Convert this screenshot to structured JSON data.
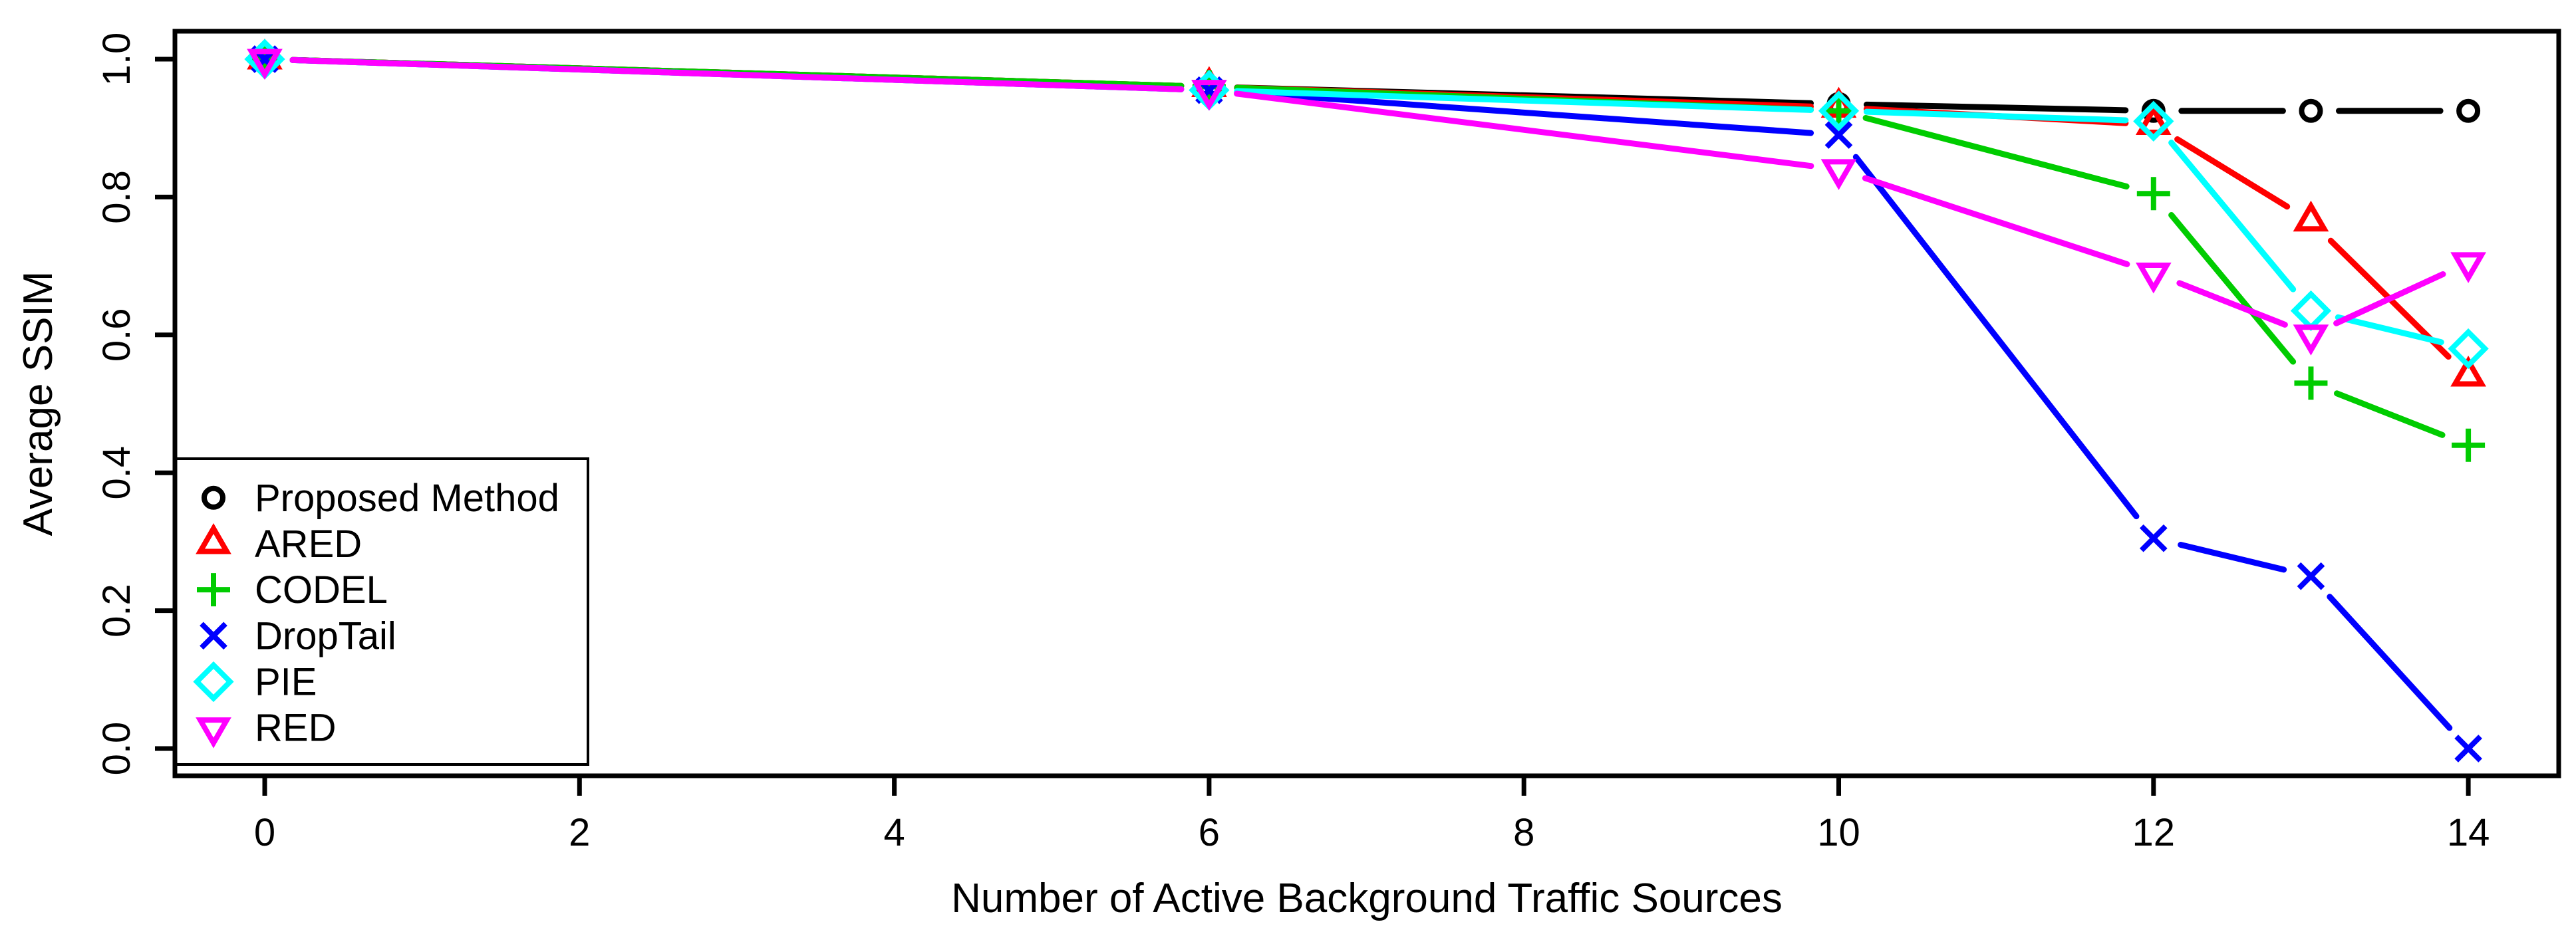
{
  "chart_data": {
    "type": "line",
    "title": "",
    "xlabel": "Number of Active Background Traffic Sources",
    "ylabel": "Average SSIM",
    "xlim": [
      0,
      14
    ],
    "ylim": [
      0.0,
      1.0
    ],
    "x_tick_labels": [
      "0",
      "2",
      "4",
      "6",
      "8",
      "10",
      "12",
      "14"
    ],
    "x_tick_values": [
      0,
      2,
      4,
      6,
      8,
      10,
      12,
      14
    ],
    "y_tick_labels": [
      "0.0",
      "0.2",
      "0.4",
      "0.6",
      "0.8",
      "1.0"
    ],
    "y_tick_values": [
      0.0,
      0.2,
      0.4,
      0.6,
      0.8,
      1.0
    ],
    "grid": false,
    "legend_position": "bottom-left",
    "line_style": "points-and-lines",
    "x": [
      0,
      6,
      10,
      12,
      13,
      14
    ],
    "series": [
      {
        "name": "Proposed Method",
        "color": "#000000",
        "marker": "circle",
        "values": [
          1.0,
          0.96,
          0.935,
          0.925,
          0.925,
          0.925
        ]
      },
      {
        "name": "ARED",
        "color": "#FF0000",
        "marker": "triangle-up",
        "values": [
          1.0,
          0.96,
          0.93,
          0.905,
          0.765,
          0.54
        ]
      },
      {
        "name": "CODEL",
        "color": "#00CC00",
        "marker": "plus",
        "values": [
          1.0,
          0.96,
          0.925,
          0.805,
          0.53,
          0.44
        ]
      },
      {
        "name": "DropTail",
        "color": "#0000FF",
        "marker": "x",
        "values": [
          1.0,
          0.955,
          0.89,
          0.305,
          0.25,
          0.0
        ]
      },
      {
        "name": "PIE",
        "color": "#00FFFF",
        "marker": "diamond",
        "values": [
          1.0,
          0.955,
          0.925,
          0.91,
          0.635,
          0.58
        ]
      },
      {
        "name": "RED",
        "color": "#FF00FF",
        "marker": "triangle-down",
        "values": [
          1.0,
          0.955,
          0.84,
          0.69,
          0.6,
          0.705
        ]
      }
    ],
    "axis_color": "#000000",
    "text_color": "#000000"
  }
}
